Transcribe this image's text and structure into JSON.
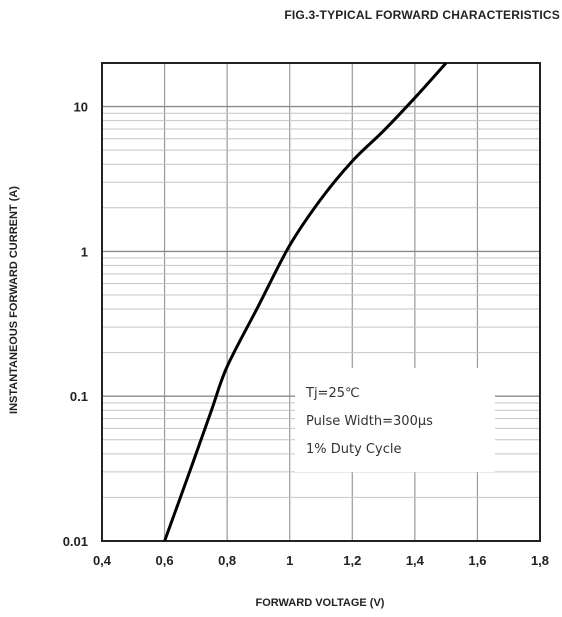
{
  "chart_data": {
    "type": "line",
    "title": "FIG.3-TYPICAL FORWARD CHARACTERISTICS",
    "xlabel": "FORWARD VOLTAGE (V)",
    "ylabel": "INSTANTANEOUS FORWARD CURRENT (A)",
    "xlim": [
      0.4,
      1.8
    ],
    "ylim": [
      0.01,
      20
    ],
    "yscale": "log",
    "grid": true,
    "x_ticks": [
      "0,4",
      "0,6",
      "0,8",
      "1",
      "1,2",
      "1,4",
      "1,6",
      "1,8"
    ],
    "x_tick_values": [
      0.4,
      0.6,
      0.8,
      1.0,
      1.2,
      1.4,
      1.6,
      1.8
    ],
    "y_ticks": [
      "0.01",
      "0.1",
      "1",
      "10"
    ],
    "y_tick_values": [
      0.01,
      0.1,
      1,
      10
    ],
    "series": [
      {
        "x": [
          0.6,
          0.68,
          0.75,
          0.8,
          0.9,
          1.0,
          1.1,
          1.2,
          1.3,
          1.4,
          1.5
        ],
        "y": [
          0.01,
          0.03,
          0.08,
          0.16,
          0.42,
          1.1,
          2.3,
          4.2,
          6.8,
          11.5,
          20
        ]
      }
    ],
    "annotations": [
      "Tj=25℃",
      "Pulse Width=300μs",
      "1% Duty Cycle"
    ]
  }
}
